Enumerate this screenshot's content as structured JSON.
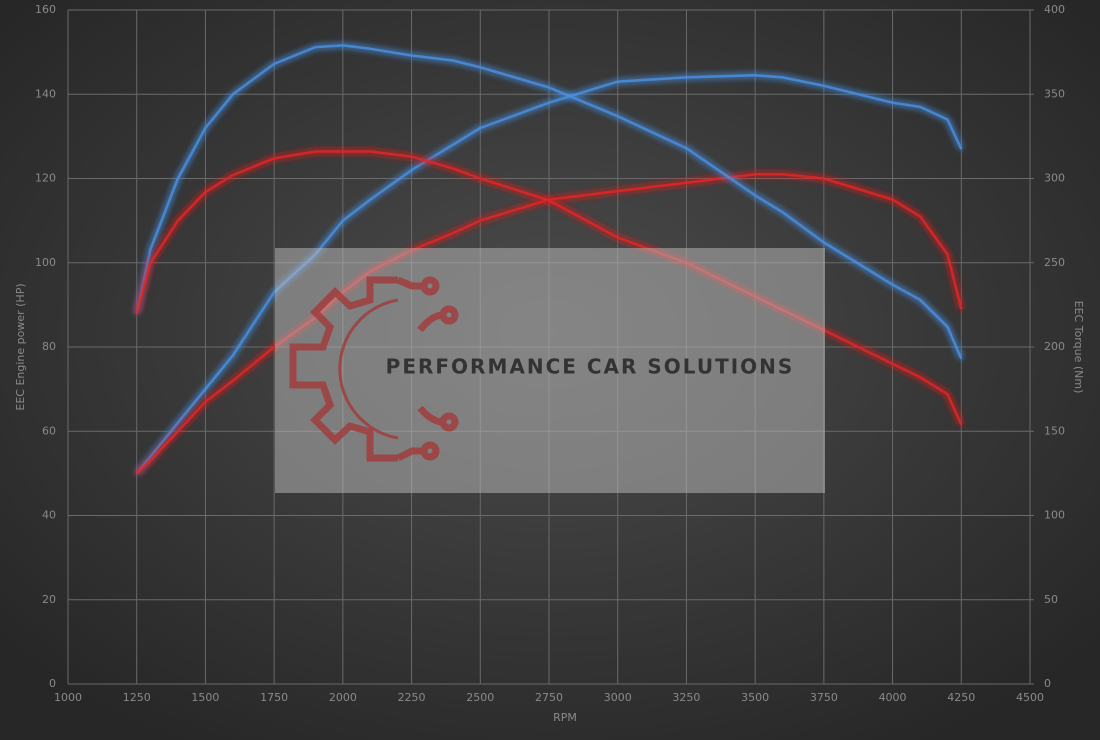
{
  "chart_data": {
    "type": "line",
    "xlabel": "RPM",
    "ylabel": "EEC Engine power (HP)",
    "y2label": "EEC Torque (Nm)",
    "watermark": "PERFORMANCE CAR SOLUTIONS",
    "x": [
      1250,
      1300,
      1400,
      1500,
      1600,
      1750,
      1900,
      2000,
      2100,
      2250,
      2400,
      2500,
      2750,
      3000,
      3250,
      3500,
      3600,
      3750,
      4000,
      4100,
      4200,
      4250
    ],
    "xlim": [
      1000,
      4500
    ],
    "xticks": [
      1000,
      1250,
      1500,
      1750,
      2000,
      2250,
      2500,
      2750,
      3000,
      3250,
      3500,
      3750,
      4000,
      4250,
      4500
    ],
    "ylim": [
      0,
      160
    ],
    "yticks": [
      0,
      20,
      40,
      60,
      80,
      100,
      120,
      140,
      160
    ],
    "y2lim": [
      0,
      400
    ],
    "y2ticks": [
      0,
      50,
      100,
      150,
      200,
      250,
      300,
      350,
      400
    ],
    "grid": true,
    "series": [
      {
        "color": "#4a90e2",
        "values": [
          50,
          54,
          62,
          70,
          78,
          93,
          102,
          110,
          115,
          122,
          128,
          132,
          138,
          143,
          144,
          144.5,
          144,
          142,
          138,
          137,
          134,
          127
        ]
      },
      {
        "color": "#e02828",
        "values": [
          50,
          53,
          60,
          67,
          72,
          80,
          87,
          93,
          98,
          103,
          107,
          110,
          115,
          117,
          119,
          121,
          121,
          120,
          115,
          111,
          102,
          89
        ]
      },
      {
        "color": "#4a90e2",
        "axis": "y2",
        "values": [
          220,
          258,
          300,
          330,
          350,
          368,
          378,
          379,
          377,
          373,
          370,
          366,
          354,
          337,
          318,
          290,
          280,
          262,
          237,
          228,
          212,
          193
        ]
      },
      {
        "color": "#e02828",
        "axis": "y2",
        "values": [
          220,
          250,
          275,
          292,
          302,
          312,
          316,
          316,
          316,
          313,
          306,
          300,
          287,
          265,
          250,
          230,
          222,
          210,
          190,
          182,
          172,
          154
        ]
      }
    ]
  }
}
